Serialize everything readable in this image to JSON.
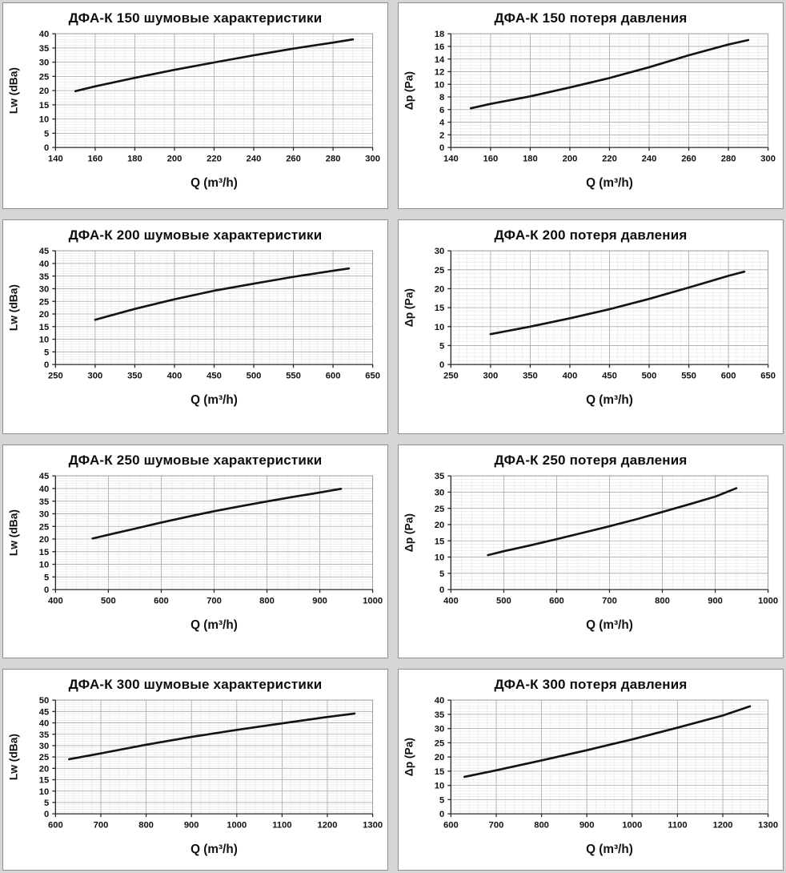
{
  "page": {
    "background_color": "#d5d5d5",
    "panel_background": "#ffffff",
    "panel_border_color": "#8f8f8f",
    "curve_color": "#141414",
    "major_grid_color": "#ababab",
    "minor_grid_color": "#e2e2e2",
    "axis_color": "#2b2b2b"
  },
  "chart_data": [
    {
      "type": "line",
      "title": "ДФА-К 150 шумовые характеристики",
      "xlabel": "Q (m³/h)",
      "ylabel": "Lw (dBa)",
      "xlim": [
        140,
        300
      ],
      "ylim": [
        0,
        40
      ],
      "xticks": [
        140,
        160,
        180,
        200,
        220,
        240,
        260,
        280,
        300
      ],
      "yticks": [
        0,
        5,
        10,
        15,
        20,
        25,
        30,
        35,
        40
      ],
      "xminor": 5,
      "yminor": 1,
      "grid": true,
      "legend": false,
      "x": [
        150,
        160,
        180,
        200,
        220,
        240,
        260,
        280,
        290
      ],
      "y": [
        19.8,
        21.5,
        24.5,
        27.3,
        29.9,
        32.4,
        34.8,
        36.9,
        38.0
      ]
    },
    {
      "type": "line",
      "title": "ДФА-К 150 потеря давления",
      "xlabel": "Q (m³/h)",
      "ylabel": "Δp (Pa)",
      "xlim": [
        140,
        300
      ],
      "ylim": [
        0,
        18
      ],
      "xticks": [
        140,
        160,
        180,
        200,
        220,
        240,
        260,
        280,
        300
      ],
      "yticks": [
        0,
        2,
        4,
        6,
        8,
        10,
        12,
        14,
        16,
        18
      ],
      "xminor": 5,
      "yminor": 0.5,
      "grid": true,
      "legend": false,
      "x": [
        150,
        160,
        180,
        200,
        220,
        240,
        260,
        280,
        290
      ],
      "y": [
        6.2,
        6.9,
        8.1,
        9.5,
        11.0,
        12.7,
        14.6,
        16.3,
        17.0
      ]
    },
    {
      "type": "line",
      "title": "ДФА-К 200 шумовые характеристики",
      "xlabel": "Q (m³/h)",
      "ylabel": "Lw (dBa)",
      "xlim": [
        250,
        650
      ],
      "ylim": [
        0,
        45
      ],
      "xticks": [
        250,
        300,
        350,
        400,
        450,
        500,
        550,
        600,
        650
      ],
      "yticks": [
        0,
        5,
        10,
        15,
        20,
        25,
        30,
        35,
        40,
        45
      ],
      "xminor": 10,
      "yminor": 1,
      "grid": true,
      "legend": false,
      "x": [
        300,
        350,
        400,
        450,
        500,
        550,
        600,
        620
      ],
      "y": [
        17.7,
        22.0,
        25.8,
        29.2,
        32.0,
        34.7,
        37.1,
        38.0
      ]
    },
    {
      "type": "line",
      "title": "ДФА-К 200 потеря давления",
      "xlabel": "Q (m³/h)",
      "ylabel": "Δp (Pa)",
      "xlim": [
        250,
        650
      ],
      "ylim": [
        0,
        30
      ],
      "xticks": [
        250,
        300,
        350,
        400,
        450,
        500,
        550,
        600,
        650
      ],
      "yticks": [
        0,
        5,
        10,
        15,
        20,
        25,
        30
      ],
      "xminor": 10,
      "yminor": 1,
      "grid": true,
      "legend": false,
      "x": [
        300,
        350,
        400,
        450,
        500,
        550,
        600,
        620
      ],
      "y": [
        8.0,
        10.0,
        12.2,
        14.6,
        17.3,
        20.3,
        23.4,
        24.5
      ]
    },
    {
      "type": "line",
      "title": "ДФА-К 250 шумовые характеристики",
      "xlabel": "Q (m³/h)",
      "ylabel": "Lw (dBa)",
      "xlim": [
        400,
        1000
      ],
      "ylim": [
        0,
        45
      ],
      "xticks": [
        400,
        500,
        600,
        700,
        800,
        900,
        1000
      ],
      "yticks": [
        0,
        5,
        10,
        15,
        20,
        25,
        30,
        35,
        40,
        45
      ],
      "xminor": 20,
      "yminor": 1,
      "grid": true,
      "legend": false,
      "x": [
        470,
        500,
        550,
        600,
        650,
        700,
        750,
        800,
        850,
        900,
        940
      ],
      "y": [
        20.2,
        21.7,
        24.1,
        26.5,
        28.8,
        31.0,
        33.0,
        34.9,
        36.7,
        38.4,
        39.9
      ]
    },
    {
      "type": "line",
      "title": "ДФА-К 250 потеря давления",
      "xlabel": "Q (m³/h)",
      "ylabel": "Δp (Pa)",
      "xlim": [
        400,
        1000
      ],
      "ylim": [
        0,
        35
      ],
      "xticks": [
        400,
        500,
        600,
        700,
        800,
        900,
        1000
      ],
      "yticks": [
        0,
        5,
        10,
        15,
        20,
        25,
        30,
        35
      ],
      "xminor": 20,
      "yminor": 1,
      "grid": true,
      "legend": false,
      "x": [
        470,
        500,
        550,
        600,
        650,
        700,
        750,
        800,
        850,
        900,
        940
      ],
      "y": [
        10.6,
        11.8,
        13.6,
        15.5,
        17.5,
        19.5,
        21.6,
        23.9,
        26.2,
        28.6,
        31.2
      ]
    },
    {
      "type": "line",
      "title": "ДФА-К 300 шумовые характеристики",
      "xlabel": "Q (m³/h)",
      "ylabel": "Lw (dBa)",
      "xlim": [
        600,
        1300
      ],
      "ylim": [
        0,
        50
      ],
      "xticks": [
        600,
        700,
        800,
        900,
        1000,
        1100,
        1200,
        1300
      ],
      "yticks": [
        0,
        5,
        10,
        15,
        20,
        25,
        30,
        35,
        40,
        45,
        50
      ],
      "xminor": 20,
      "yminor": 1,
      "grid": true,
      "legend": false,
      "x": [
        630,
        700,
        800,
        900,
        1000,
        1100,
        1200,
        1260
      ],
      "y": [
        24.0,
        26.6,
        30.4,
        33.8,
        36.9,
        39.8,
        42.6,
        44.1
      ]
    },
    {
      "type": "line",
      "title": "ДФА-К 300 потеря давления",
      "xlabel": "Q (m³/h)",
      "ylabel": "Δp (Pa)",
      "xlim": [
        600,
        1300
      ],
      "ylim": [
        0,
        40
      ],
      "xticks": [
        600,
        700,
        800,
        900,
        1000,
        1100,
        1200,
        1300
      ],
      "yticks": [
        0,
        5,
        10,
        15,
        20,
        25,
        30,
        35,
        40
      ],
      "xminor": 20,
      "yminor": 1,
      "grid": true,
      "legend": false,
      "x": [
        630,
        700,
        800,
        900,
        1000,
        1100,
        1200,
        1260
      ],
      "y": [
        13.0,
        15.3,
        18.8,
        22.4,
        26.2,
        30.3,
        34.6,
        37.8
      ]
    }
  ]
}
